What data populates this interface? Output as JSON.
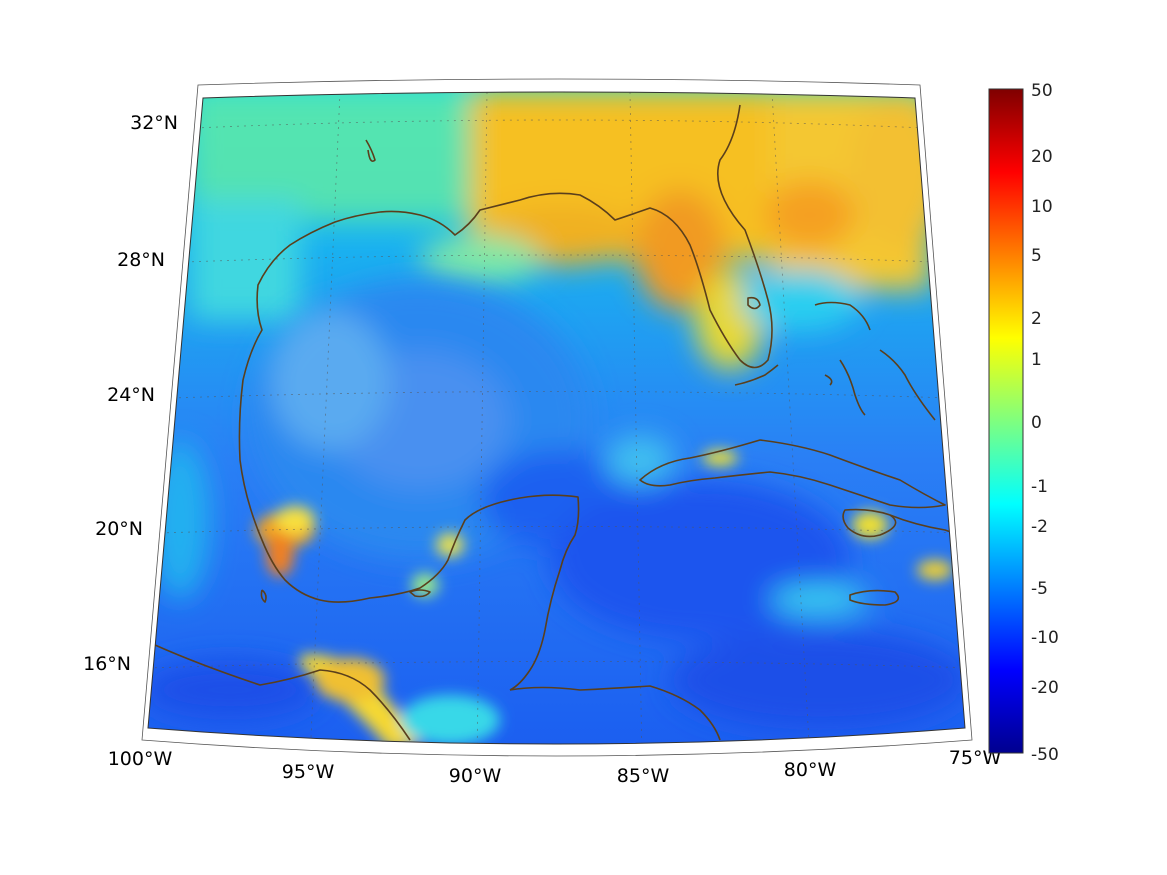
{
  "map": {
    "projection": "conic",
    "lon_labels": [
      "100°W",
      "95°W",
      "90°W",
      "85°W",
      "80°W",
      "75°W"
    ],
    "lat_labels": [
      "32°N",
      "28°N",
      "24°N",
      "20°N",
      "16°N"
    ],
    "colormap": "jet",
    "coastline_color": "#5a3f1c",
    "grid": "dotted"
  },
  "colorbar": {
    "labels": [
      "50",
      "20",
      "10",
      "5",
      "2",
      "1",
      "0",
      "-1",
      "-2",
      "-5",
      "-10",
      "-20",
      "-50"
    ],
    "colors": [
      "#7f0000",
      "#ff0000",
      "#ff7f00",
      "#ffff00",
      "#7fff7f",
      "#00ffff",
      "#007fff",
      "#0000ff",
      "#00008f"
    ]
  }
}
